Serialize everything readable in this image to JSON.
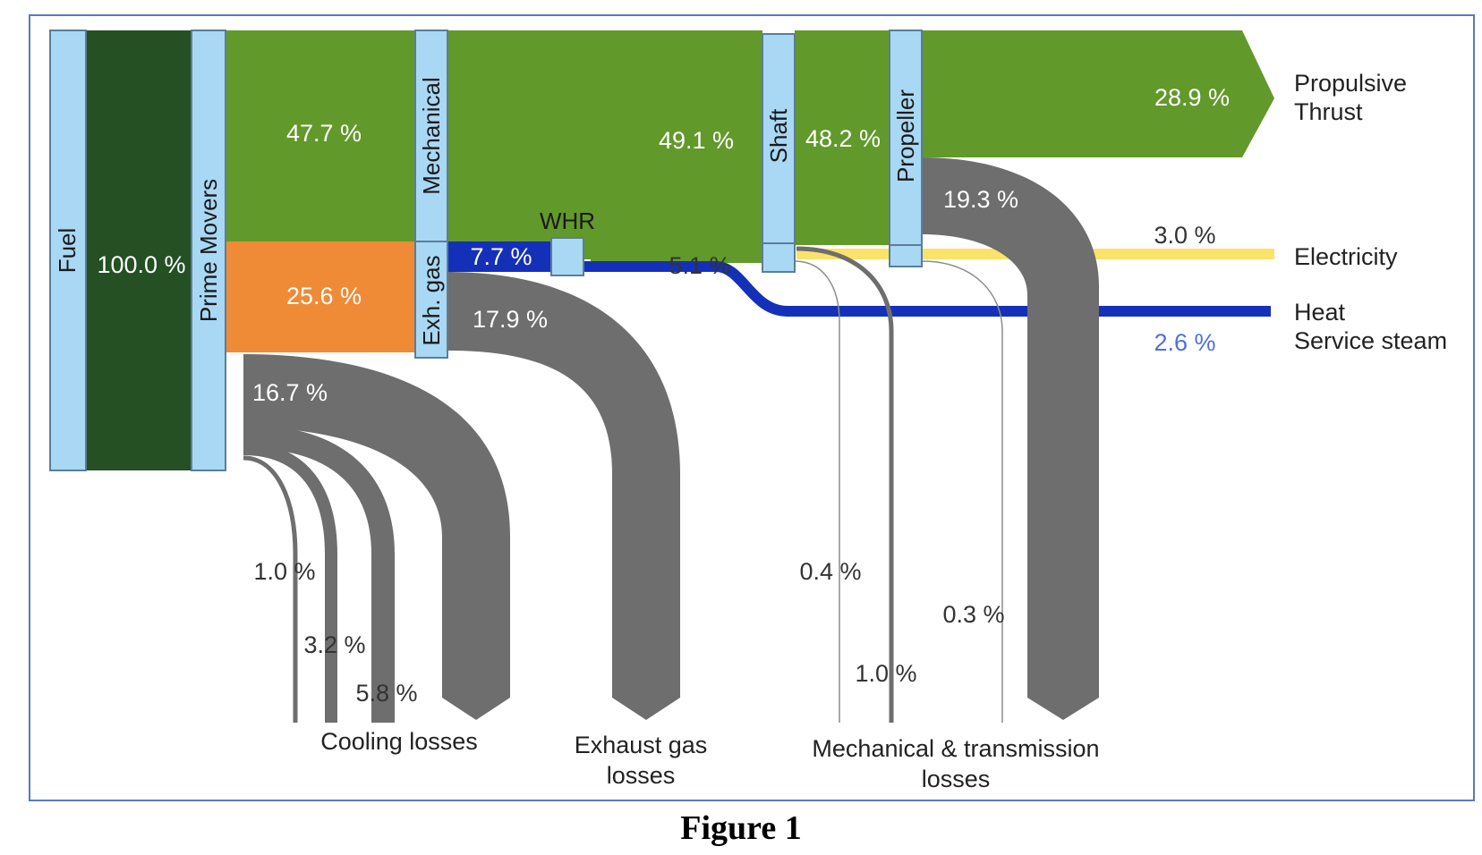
{
  "caption": "Figure 1",
  "colors": {
    "node": "#a8d8f4",
    "node_border": "#5b7d99",
    "fuel_flow": "#245023",
    "mechanical_flow": "#62992b",
    "exhaust_flow": "#ef8a36",
    "loss_flow": "#6e6e6e",
    "whr_flow": "#1530b8",
    "electricity_flow": "#fbe26a",
    "heat_label": "#4f6fe0"
  },
  "nodes": {
    "fuel": "Fuel",
    "prime_movers": "Prime Movers",
    "mechanical": "Mechanical",
    "exh_gas": "Exh. gas",
    "whr": "WHR",
    "shaft": "Shaft",
    "propeller": "Propeller"
  },
  "flows": {
    "fuel_total": "100.0 %",
    "mechanical": "47.7 %",
    "exhaust": "25.6 %",
    "cooling": "16.7 %",
    "to_shaft": "49.1 %",
    "shaft_to_propeller": "48.2 %",
    "propulsive": "28.9 %",
    "propeller_loss": "19.3 %",
    "whr_in": "7.7 %",
    "exhaust_loss": "17.9 %",
    "whr_to_shaft": "5.1 %",
    "electricity": "3.0 %",
    "heat": "2.6 %",
    "cooling_a": "1.0 %",
    "cooling_b": "3.2 %",
    "cooling_c": "5.8 %",
    "mech_loss_a": "0.4 %",
    "mech_loss_b": "1.0 %",
    "mech_loss_c": "0.3 %"
  },
  "outputs": {
    "propulsive_line1": "Propulsive",
    "propulsive_line2": "Thrust",
    "electricity": "Electricity",
    "heat_line1": "Heat",
    "heat_line2": "Service steam"
  },
  "groups": {
    "cooling": "Cooling losses",
    "exhaust_line1": "Exhaust gas",
    "exhaust_line2": "losses",
    "mech_line1": "Mechanical & transmission",
    "mech_line2": "losses"
  }
}
